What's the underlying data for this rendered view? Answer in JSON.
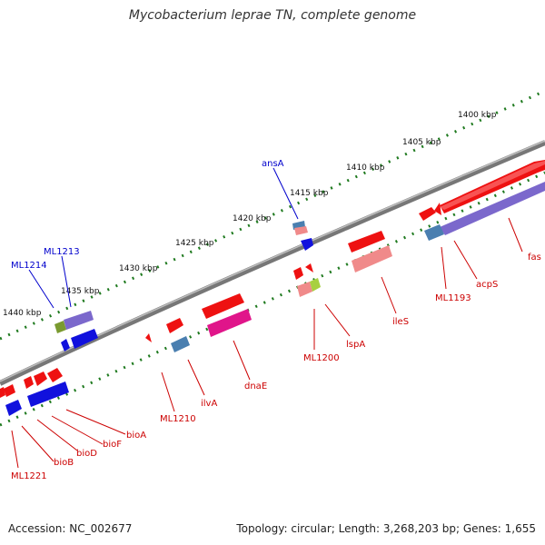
{
  "header": {
    "title": "Mycobacterium leprae TN, complete genome"
  },
  "footer": {
    "accession": "Accession: NC_002677",
    "summary": "Topology: circular; Length: 3,268,203 bp; Genes: 1,655"
  },
  "ruler": {
    "ticks": [
      "1400 kbp",
      "1405 kbp",
      "1410 kbp",
      "1415 kbp",
      "1420 kbp",
      "1425 kbp",
      "1430 kbp",
      "1435 kbp",
      "1440 kbp"
    ]
  },
  "gene_labels": {
    "ansA": "ansA",
    "ML1213": "ML1213",
    "ML1214": "ML1214",
    "fas": "fas",
    "acpS": "acpS",
    "ML1193": "ML1193",
    "ileS": "ileS",
    "lspA": "lspA",
    "ML1200": "ML1200",
    "dnaE": "dnaE",
    "ilvA": "ilvA",
    "ML1210": "ML1210",
    "bioA": "bioA",
    "bioF": "bioF",
    "bioD": "bioD",
    "bioB": "bioB",
    "ML1221": "ML1221"
  },
  "colors": {
    "backbone": "#8a8a8a",
    "tick_green": "#1f7a1f",
    "label_red": "#cc0000",
    "label_blue": "#0000cc",
    "cds_red": "#ee1111",
    "cds_pink": "#f08a8a",
    "cds_magenta": "#e0158a",
    "cds_blue": "#1111dd",
    "cds_purple": "#7b68cc",
    "cds_steel": "#4a7fb0",
    "cds_green": "#7a9a30"
  }
}
